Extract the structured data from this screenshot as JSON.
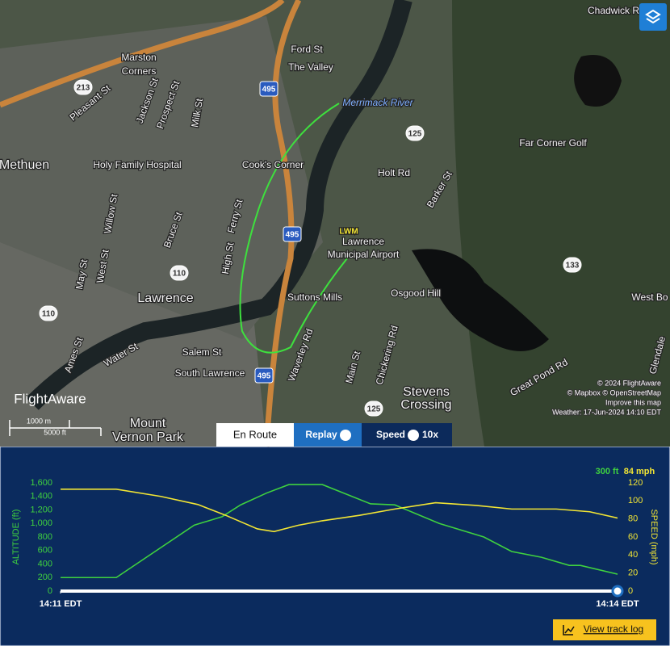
{
  "map": {
    "places": [
      "Marston",
      "Corners",
      "Ford St",
      "The Valley",
      "Merrimack River",
      "Pleasant St",
      "Jackson St",
      "Prospect St",
      "Milk St",
      "Methuen",
      "Holy Family Hospital",
      "Cook's Corner",
      "Holt Rd",
      "Barker St",
      "Far Corner Golf",
      "LWM",
      "Lawrence",
      "Municipal Airport",
      "Ferry St",
      "Bruce St",
      "Willow St",
      "High St",
      "West St",
      "May St",
      "Lawrence",
      "Suttons Mills",
      "Osgood Hill",
      "Salem St",
      "South Lawrence",
      "Water St",
      "Ames St",
      "Waverley Rd",
      "Main St",
      "Chickering Rd",
      "Stevens",
      "Crossing",
      "Great Pond Rd",
      "Glendale",
      "West Bo",
      "Mount",
      "Vernon Park",
      "Chadwick R"
    ],
    "shields": [
      "213",
      "495",
      "125",
      "495",
      "110",
      "110",
      "133",
      "495",
      "125"
    ],
    "attribution": [
      "© 2024 FlightAware",
      "© Mapbox © OpenStreetMap",
      "Improve this map",
      "Weather: 17-Jun-2024 14:10 EDT"
    ],
    "scale": [
      "1000 m",
      "5000 ft"
    ],
    "logo": "FlightAware"
  },
  "controls": {
    "en_route": "En Route",
    "replay": "Replay",
    "speed": "Speed",
    "speed_value": "10x",
    "track_log": "View track log"
  },
  "chart_data": {
    "type": "line",
    "current": [
      "300 ft",
      "84 mph"
    ],
    "ylabel": "ALTITUDE (ft)",
    "y2label": "SPEED (mph)",
    "xlim": [
      0,
      3
    ],
    "xticks": [
      {
        "value": 0,
        "label": "14:11 EDT"
      },
      {
        "value": 3,
        "label": "14:14 EDT"
      }
    ],
    "ylim": [
      0,
      1600
    ],
    "yticks": [
      0,
      200,
      400,
      600,
      800,
      {
        "value": 1000,
        "label": "1,000"
      },
      {
        "value": 1200,
        "label": "1,200"
      },
      {
        "value": 1400,
        "label": "1,400"
      },
      {
        "value": 1600,
        "label": "1,600"
      }
    ],
    "y2lim": [
      0,
      120
    ],
    "y2ticks": [
      0,
      20,
      40,
      60,
      80,
      100,
      120
    ],
    "series": [
      {
        "name": "Altitude",
        "color": "#3fd13f",
        "x": [
          0,
          0.3,
          0.72,
          0.87,
          0.97,
          1.11,
          1.23,
          1.41,
          1.67,
          1.8,
          2.04,
          2.28,
          2.43,
          2.59,
          2.74,
          2.8,
          3
        ],
        "values": [
          200,
          200,
          975,
          1100,
          1275,
          1450,
          1575,
          1575,
          1290,
          1275,
          1000,
          800,
          585,
          500,
          380,
          380,
          250
        ]
      },
      {
        "name": "Speed",
        "color": "#f2e534",
        "axis": "y2",
        "x": [
          0,
          0.3,
          0.54,
          0.74,
          0.89,
          1.06,
          1.15,
          1.28,
          1.41,
          1.61,
          1.8,
          2.02,
          2.24,
          2.43,
          2.67,
          2.85,
          3
        ],
        "values": [
          113,
          113,
          105,
          96,
          84,
          69,
          66,
          73,
          78,
          84,
          91,
          98,
          95,
          91,
          91,
          88,
          81
        ]
      }
    ]
  }
}
